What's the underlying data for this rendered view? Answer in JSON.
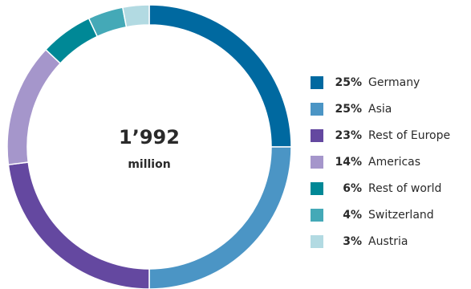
{
  "chart_data": {
    "type": "pie",
    "donut": true,
    "center_value": "1’992",
    "center_unit": "million",
    "legend_position": "right",
    "slices": [
      {
        "pct_label": "25%",
        "label": "Germany",
        "value": 25,
        "color": "#0069a0"
      },
      {
        "pct_label": "25%",
        "label": "Asia",
        "value": 25,
        "color": "#4b95c5"
      },
      {
        "pct_label": "23%",
        "label": "Rest of Europe",
        "value": 23,
        "color": "#6448a0"
      },
      {
        "pct_label": "14%",
        "label": "Americas",
        "value": 14,
        "color": "#a596cb"
      },
      {
        "pct_label": "6%",
        "label": "Rest of world",
        "value": 6,
        "color": "#008896"
      },
      {
        "pct_label": "4%",
        "label": "Switzerland",
        "value": 4,
        "color": "#44a9b7"
      },
      {
        "pct_label": "3%",
        "label": "Austria",
        "value": 3,
        "color": "#b2dae2"
      }
    ]
  }
}
